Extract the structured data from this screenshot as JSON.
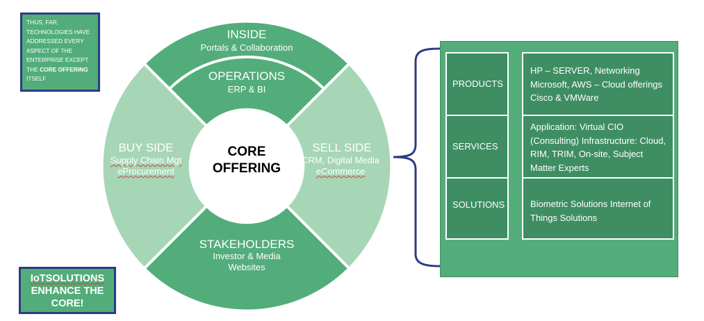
{
  "note": {
    "text": "Thus, far, technologies have addressed every aspect of the enterprise except the",
    "bold": "core offering",
    "tail": "itself"
  },
  "callout": {
    "lines": [
      "IoTSOLUTIONS",
      "ENHANCE THE",
      "CORE!"
    ]
  },
  "wheel": {
    "inside": {
      "title": "INSIDE",
      "sub": "Portals & Collaboration"
    },
    "operations": {
      "title": "OPERATIONS",
      "sub": "ERP & BI"
    },
    "buy_side": {
      "title": "BUY SIDE",
      "sub1": "Supply Chain Mgt",
      "sub2": "eProcurement"
    },
    "sell_side": {
      "title": "SELL SIDE",
      "sub1": "CRM, Digital Media",
      "sub2": "eCommerce"
    },
    "stakeholders": {
      "title": "STAKEHOLDERS",
      "sub1": "Investor & Media",
      "sub2": "Websites"
    },
    "center": {
      "line1": "CORE",
      "line2": "OFFERING"
    }
  },
  "offerings": {
    "rows": [
      {
        "label": "PRODUCTS",
        "detail": "HP – SERVER, Networking Microsoft, AWS – Cloud offerings Cisco & VMWare"
      },
      {
        "label": "SERVICES",
        "detail": "Application: Virtual CIO (Consulting) Infrastructure: Cloud, RIM, TRIM, On-site, Subject Matter Experts"
      },
      {
        "label": "SOLUTIONS",
        "detail": "Biometric Solutions Internet of Things Solutions"
      }
    ]
  },
  "colors": {
    "green": "#52ad7a",
    "dark_green": "#3e8e62",
    "light_green": "#a6d6b6",
    "navy": "#2e3a82"
  }
}
